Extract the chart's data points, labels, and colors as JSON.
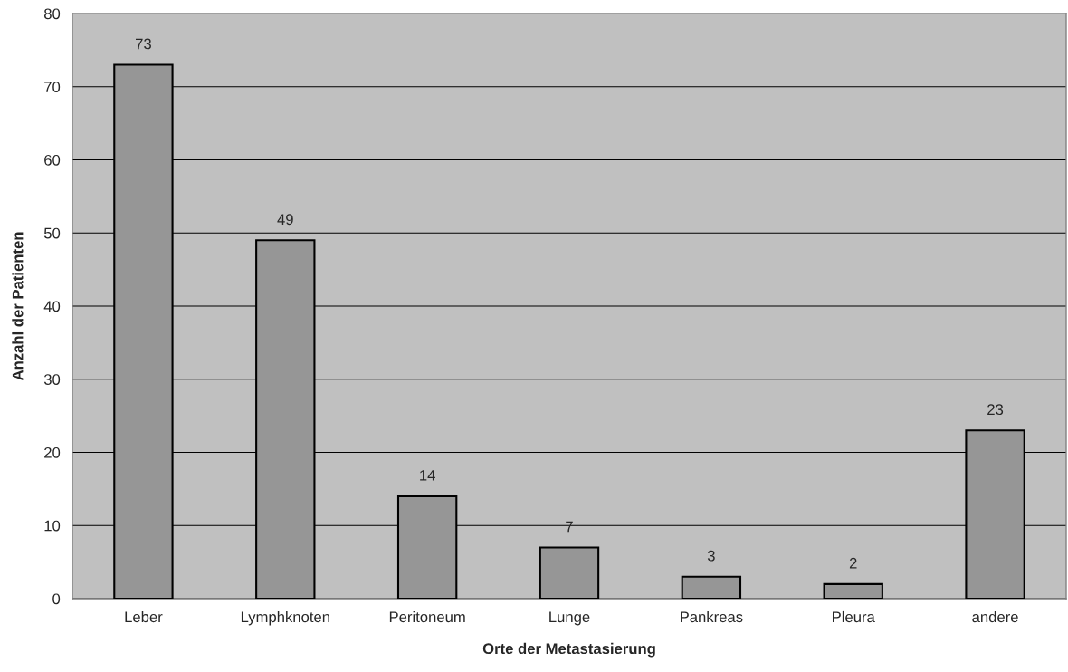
{
  "chart_data": {
    "type": "bar",
    "xlabel": "Orte der Metastasierung",
    "ylabel": "Anzahl der Patienten",
    "categories": [
      "Leber",
      "Lymphknoten",
      "Peritoneum",
      "Lunge",
      "Pankreas",
      "Pleura",
      "andere"
    ],
    "values": [
      73,
      49,
      14,
      7,
      3,
      2,
      23
    ],
    "color": "#969696",
    "ylim": [
      0,
      80
    ],
    "yticks": [
      0,
      10,
      20,
      30,
      40,
      50,
      60,
      70,
      80
    ],
    "grid": "y",
    "data_labels": true
  }
}
